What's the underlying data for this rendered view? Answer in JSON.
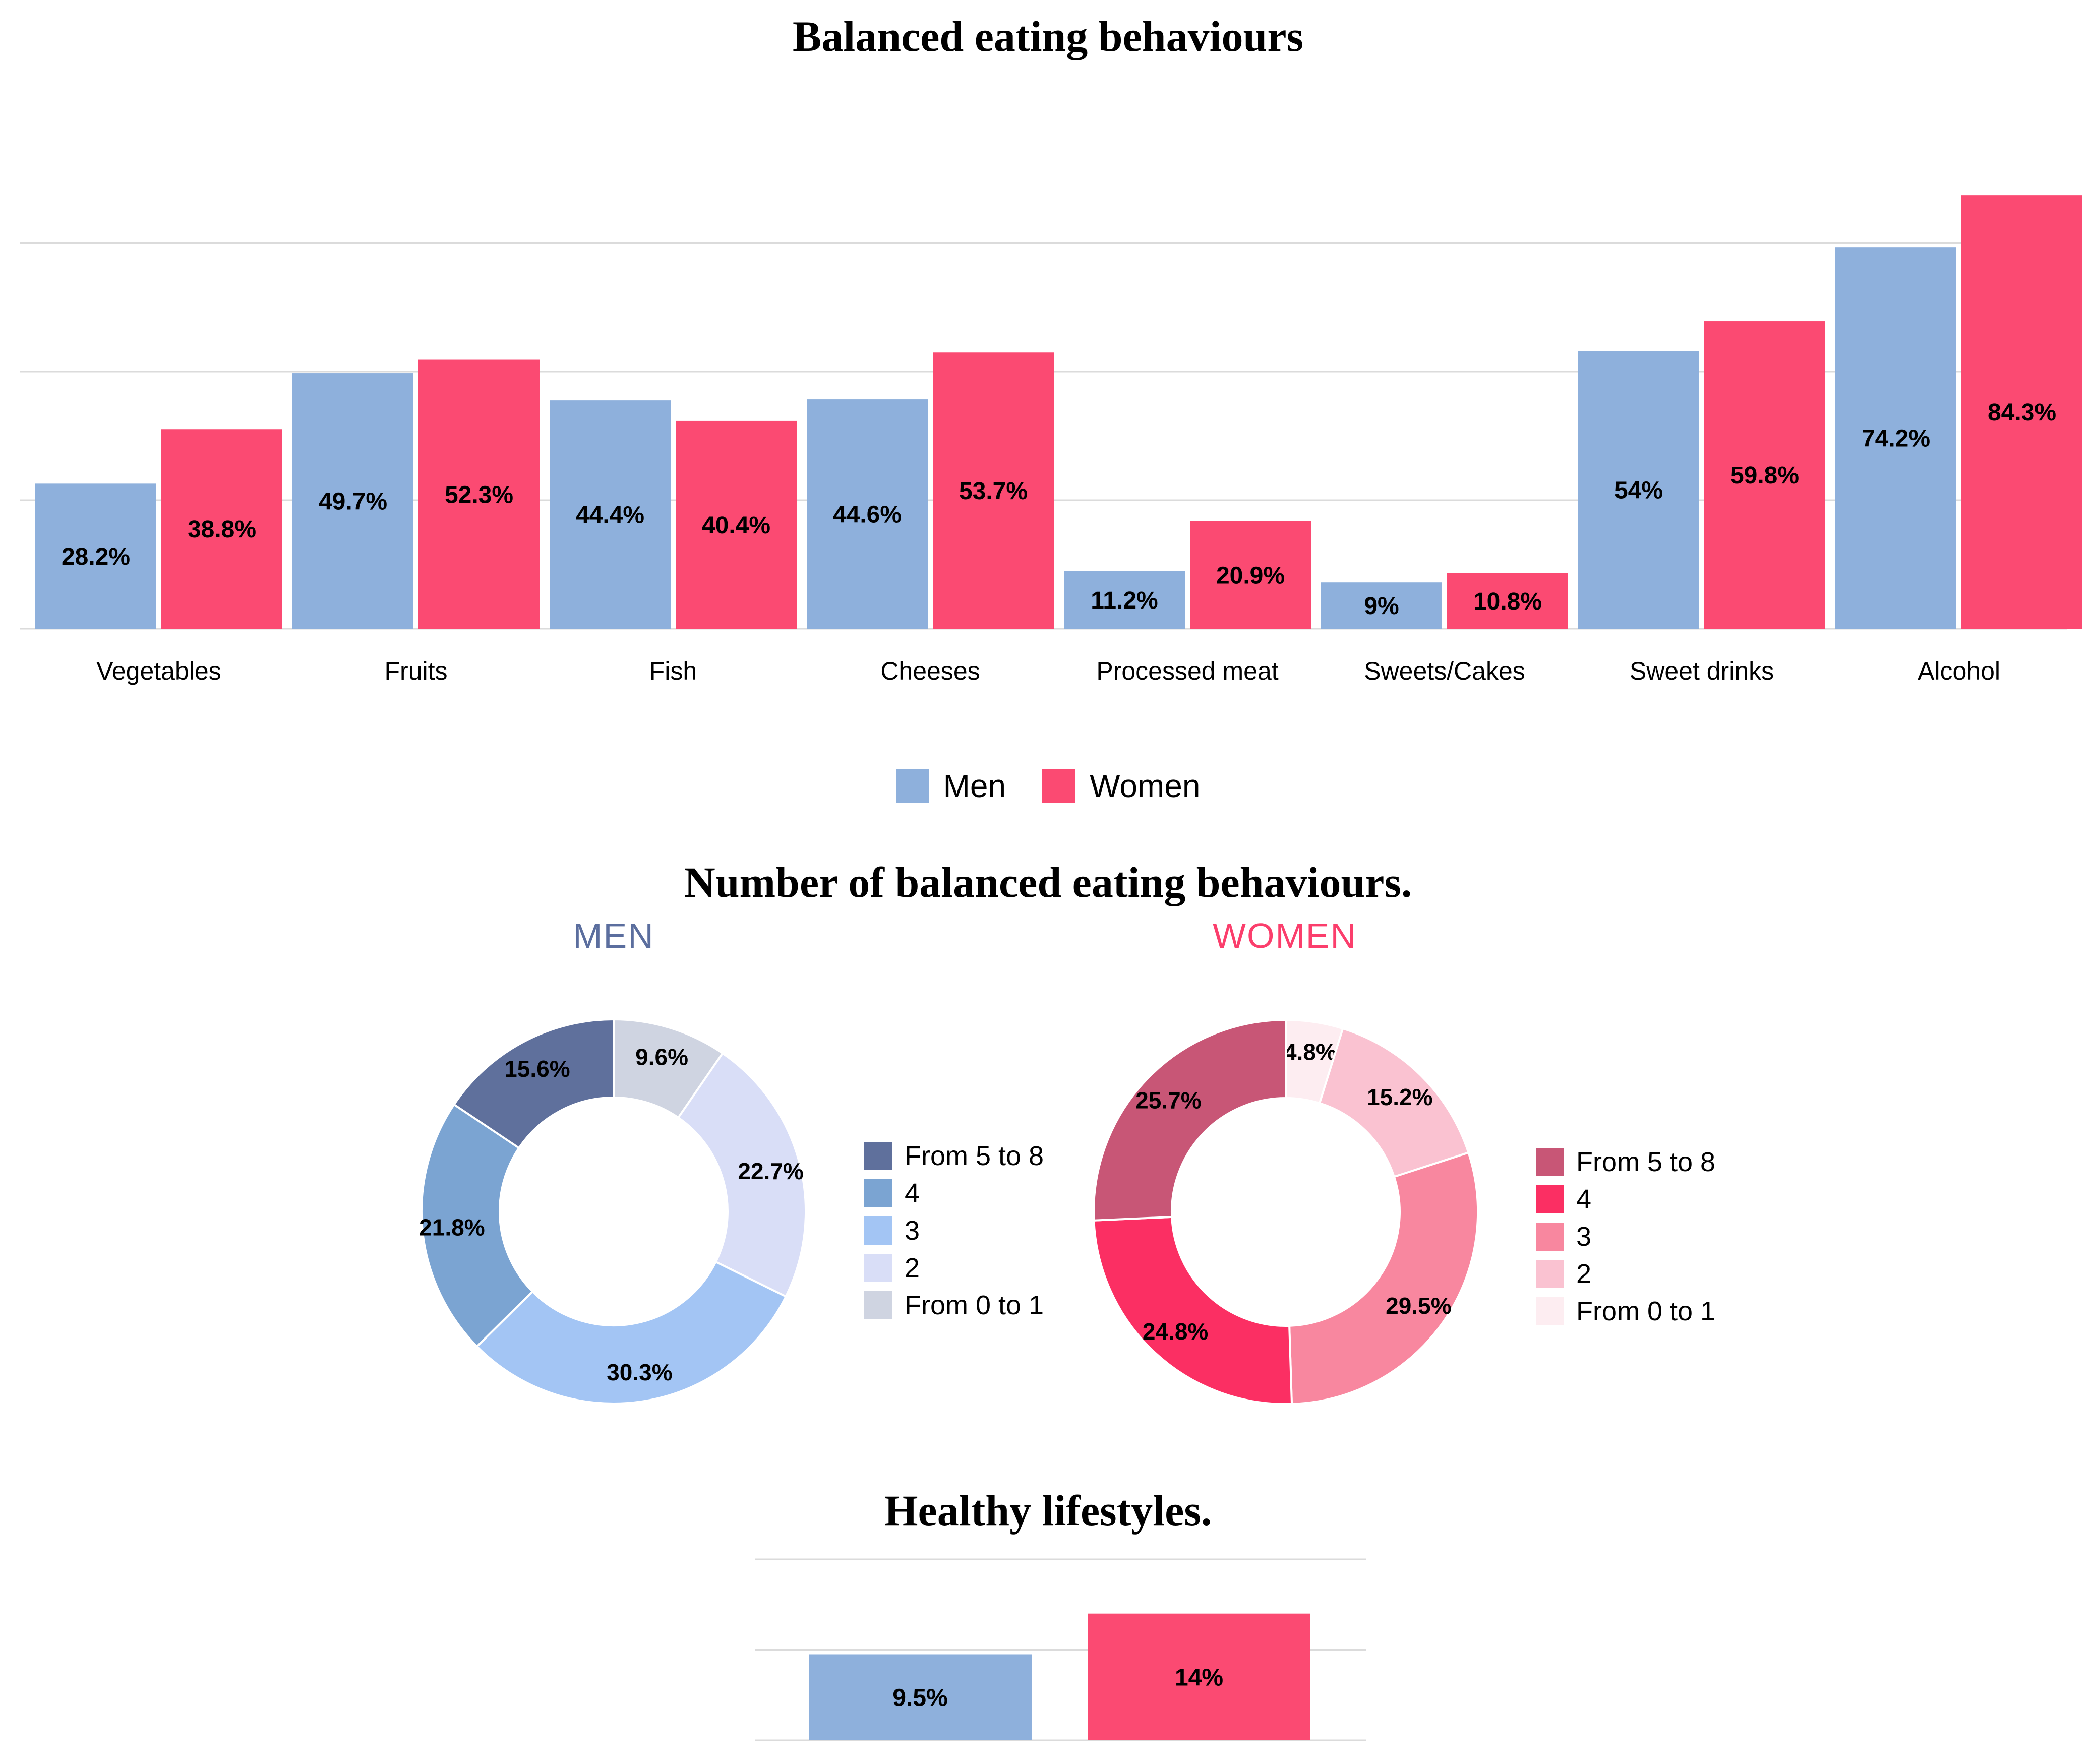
{
  "titles": {
    "bar_chart": "Balanced eating behaviours",
    "donut_section": "Number of balanced eating behaviours.",
    "lifestyle_chart": "Healthy lifestyles."
  },
  "gender_legend": [
    "Men",
    "Women"
  ],
  "donut_titles": {
    "men": "MEN",
    "women": "WOMEN"
  },
  "colors": {
    "men_bar": "#8EB0DC",
    "women_bar": "#FB4A72",
    "men_title": "#5B6E9E",
    "women_title": "#FB3E6C",
    "gridline": "#DBDBDB",
    "label_text": "#000000"
  },
  "chart_data": [
    {
      "id": "balanced_eating_behaviours",
      "type": "bar",
      "title": "Balanced eating behaviours",
      "categories": [
        "Vegetables",
        "Fruits",
        "Fish",
        "Cheeses",
        "Processed meat",
        "Sweets/Cakes",
        "Sweet drinks",
        "Alcohol"
      ],
      "series": [
        {
          "name": "Men",
          "color": "#8EB0DC",
          "values": [
            28.2,
            49.7,
            44.4,
            44.6,
            11.2,
            9,
            54,
            74.2
          ],
          "labels": [
            "28.2%",
            "49.7%",
            "44.4%",
            "44.6%",
            "11.2%",
            "9%",
            "54%",
            "74.2%"
          ]
        },
        {
          "name": "Women",
          "color": "#FB4A72",
          "values": [
            38.8,
            52.3,
            40.4,
            53.7,
            20.9,
            10.8,
            59.8,
            84.3
          ],
          "labels": [
            "38.8%",
            "52.3%",
            "40.4%",
            "53.7%",
            "20.9%",
            "10.8%",
            "59.8%",
            "84.3%"
          ]
        }
      ],
      "ylim": [
        0,
        100
      ],
      "gridlines_pct": [
        0,
        25,
        50,
        75
      ],
      "grid": true,
      "legend_position": "bottom-center",
      "value_labels": "inside-middle"
    },
    {
      "id": "donut_men",
      "type": "pie",
      "donut": true,
      "title": "MEN",
      "title_color": "#5B6E9E",
      "slices_clockwise_from_top": [
        {
          "label": "From 0 to 1",
          "value": 9.6,
          "display": "9.6%",
          "color": "#CFD4E1"
        },
        {
          "label": "2",
          "value": 22.7,
          "display": "22.7%",
          "color": "#D9DEF7"
        },
        {
          "label": "3",
          "value": 30.3,
          "display": "30.3%",
          "color": "#A3C5F4"
        },
        {
          "label": "4",
          "value": 21.8,
          "display": "21.8%",
          "color": "#7BA4D2"
        },
        {
          "label": "From 5 to 8",
          "value": 15.6,
          "display": "15.6%",
          "color": "#5F709C"
        }
      ],
      "legend_order": [
        "From 5 to 8",
        "4",
        "3",
        "2",
        "From 0 to 1"
      ],
      "legend_position": "right"
    },
    {
      "id": "donut_women",
      "type": "pie",
      "donut": true,
      "title": "WOMEN",
      "title_color": "#FB3E6C",
      "slices_clockwise_from_top": [
        {
          "label": "From 0 to 1",
          "value": 4.8,
          "display": "4.8%",
          "color": "#FDEDF1"
        },
        {
          "label": "2",
          "value": 15.2,
          "display": "15.2%",
          "color": "#FAC2D1"
        },
        {
          "label": "3",
          "value": 29.5,
          "display": "29.5%",
          "color": "#F8879F"
        },
        {
          "label": "4",
          "value": 24.8,
          "display": "24.8%",
          "color": "#FB2F63"
        },
        {
          "label": "From 5 to 8",
          "value": 25.7,
          "display": "25.7%",
          "color": "#C85676"
        }
      ],
      "legend_order": [
        "From 5 to 8",
        "4",
        "3",
        "2",
        "From 0 to 1"
      ],
      "legend_position": "right"
    },
    {
      "id": "healthy_lifestyles",
      "type": "bar",
      "title": "Healthy lifestyles.",
      "categories": [
        ""
      ],
      "series": [
        {
          "name": "Men",
          "color": "#8EB0DC",
          "values": [
            9.5
          ],
          "labels": [
            "9.5%"
          ]
        },
        {
          "name": "Women",
          "color": "#FB4A72",
          "values": [
            14
          ],
          "labels": [
            "14%"
          ]
        }
      ],
      "ylim": [
        0,
        20
      ],
      "gridlines_pct": [
        0,
        10,
        20
      ],
      "grid": true,
      "value_labels": "inside-middle"
    }
  ]
}
